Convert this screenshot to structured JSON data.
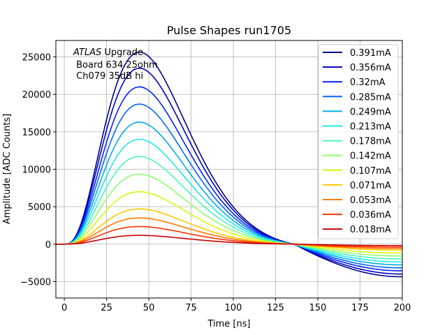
{
  "chart_data": {
    "type": "line",
    "title": "Pulse Shapes run1705",
    "xlabel": "Time [ns]",
    "ylabel": "Amplitude [ADC Counts]",
    "xlim": [
      -5,
      200
    ],
    "ylim": [
      -7200,
      27200
    ],
    "xticks": [
      0,
      25,
      50,
      75,
      100,
      125,
      150,
      175,
      200
    ],
    "yticks": [
      -5000,
      0,
      5000,
      10000,
      15000,
      20000,
      25000
    ],
    "xtick_labels": [
      "0",
      "25",
      "50",
      "75",
      "100",
      "125",
      "150",
      "175",
      "200"
    ],
    "ytick_labels": [
      "−5000",
      "0",
      "5000",
      "10000",
      "15000",
      "20000",
      "25000"
    ],
    "grid": true,
    "legend_position": "top-right",
    "annotation": {
      "italic_part": "ATLAS",
      "line1_rest": " Upgrade",
      "line2": " Board 634 25ohm",
      "line3": " Ch079 35dB hi"
    },
    "pulse_shape": {
      "peak_time": 53,
      "zero_crossing": 136,
      "undershoot_at_200_fraction": -0.185
    },
    "series": [
      {
        "name": "0.391mA",
        "color": "#00008b",
        "peak": 25650
      },
      {
        "name": "0.356mA",
        "color": "#0000c4",
        "peak": 23500
      },
      {
        "name": "0.32mA",
        "color": "#0022ff",
        "peak": 21000
      },
      {
        "name": "0.285mA",
        "color": "#0066ff",
        "peak": 18700
      },
      {
        "name": "0.249mA",
        "color": "#00aee8",
        "peak": 16300
      },
      {
        "name": "0.213mA",
        "color": "#1fe8f2",
        "peak": 14000
      },
      {
        "name": "0.178mA",
        "color": "#4cf5bd",
        "peak": 11700
      },
      {
        "name": "0.142mA",
        "color": "#8cff6e",
        "peak": 9350
      },
      {
        "name": "0.107mA",
        "color": "#d6f510",
        "peak": 7000
      },
      {
        "name": "0.071mA",
        "color": "#ffc700",
        "peak": 4700
      },
      {
        "name": "0.053mA",
        "color": "#ff7a00",
        "peak": 3500
      },
      {
        "name": "0.036mA",
        "color": "#ff3000",
        "peak": 2350
      },
      {
        "name": "0.018mA",
        "color": "#c80000",
        "peak": 1170
      }
    ]
  }
}
